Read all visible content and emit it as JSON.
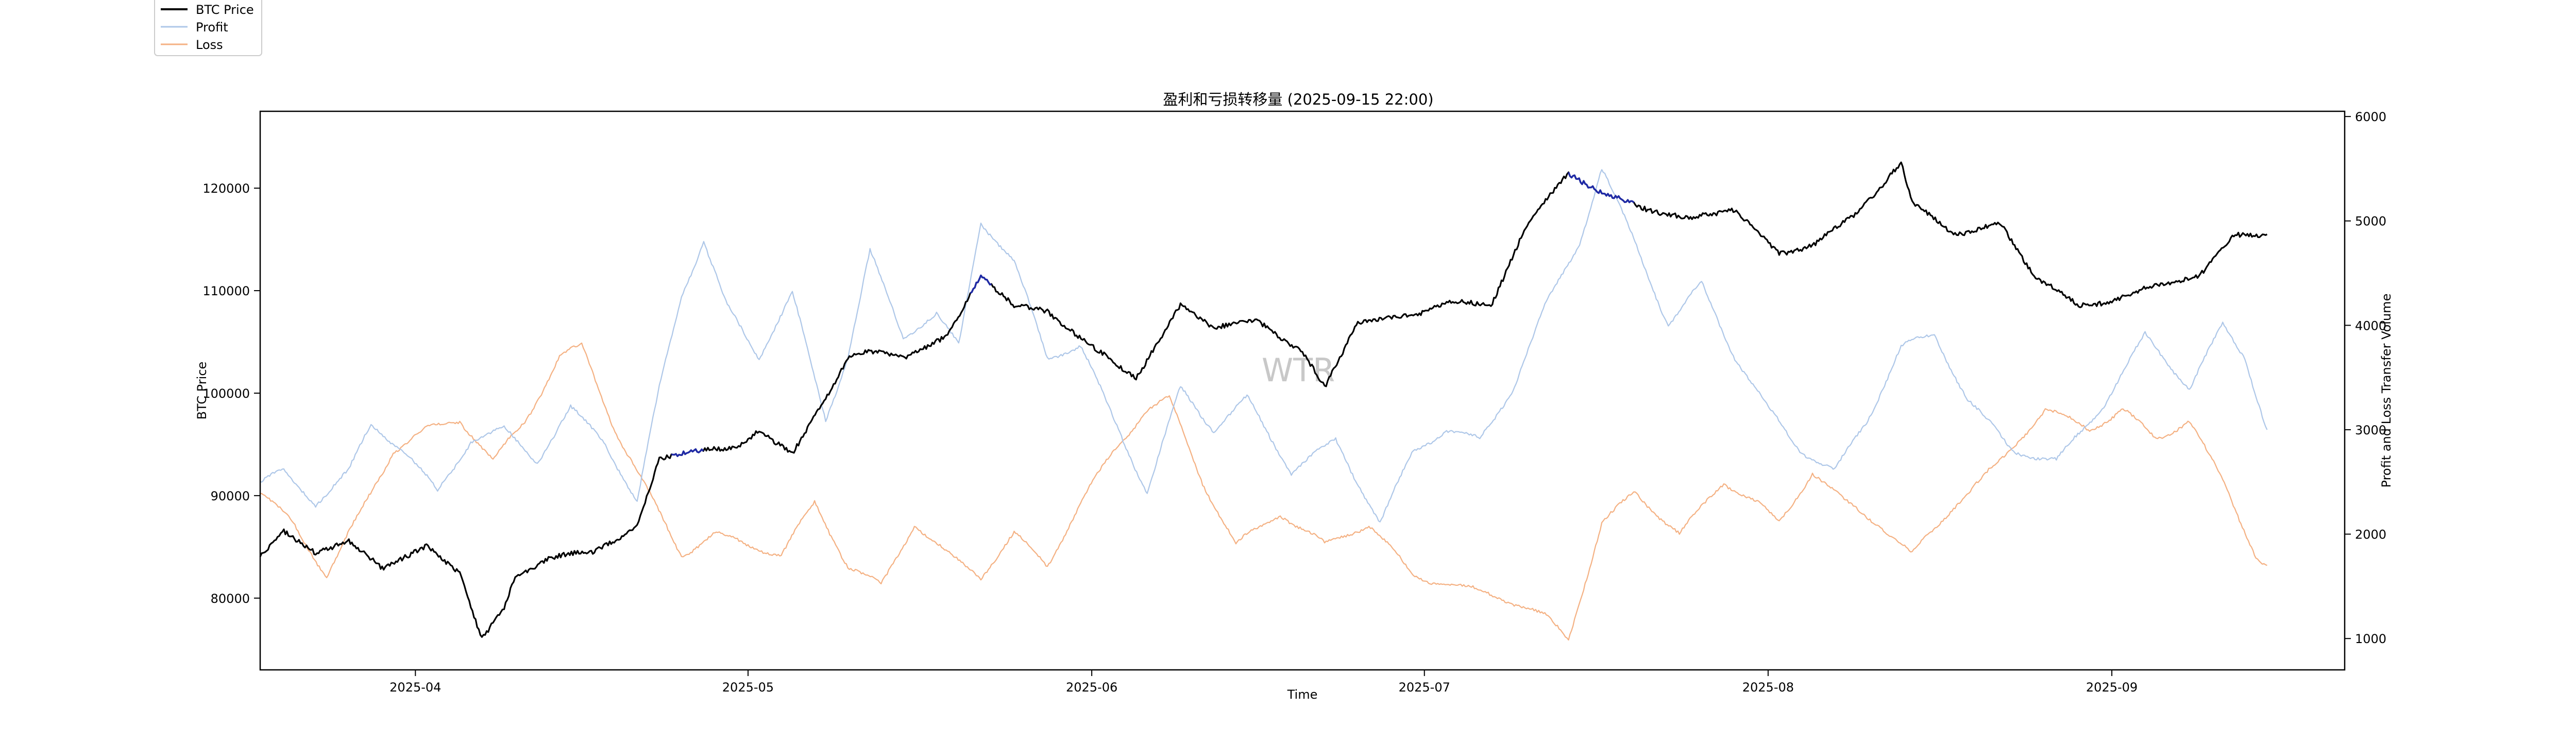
{
  "chart_data": {
    "type": "line",
    "title": "盈利和亏损转移量 (2025-09-15 22:00)",
    "xlabel": "Time",
    "ylabel_left": "BTC Price",
    "ylabel_right": "Profit and Loss Transfer Volume",
    "watermark": "WTR",
    "x_range": [
      "2025-03-18",
      "2025-09-22"
    ],
    "x_ticks": [
      {
        "date": "2025-04-01",
        "label": "2025-04"
      },
      {
        "date": "2025-05-01",
        "label": "2025-05"
      },
      {
        "date": "2025-06-01",
        "label": "2025-06"
      },
      {
        "date": "2025-07-01",
        "label": "2025-07"
      },
      {
        "date": "2025-08-01",
        "label": "2025-08"
      },
      {
        "date": "2025-09-01",
        "label": "2025-09"
      }
    ],
    "ylim_left": [
      73000,
      127500
    ],
    "yticks_left": [
      80000,
      90000,
      100000,
      110000,
      120000
    ],
    "ylim_right": [
      700,
      6050
    ],
    "yticks_right": [
      1000,
      2000,
      3000,
      4000,
      5000,
      6000
    ],
    "grid": false,
    "legend": {
      "placement": "top-left",
      "entries": [
        {
          "name": "BTC Price",
          "color": "#000000"
        },
        {
          "name": "Profit",
          "color": "#aec7e8"
        },
        {
          "name": "Loss",
          "color": "#f4b183"
        }
      ]
    },
    "highlight_color": "#1f2aa6",
    "series": [
      {
        "name": "BTC Price",
        "axis": "left",
        "color": "#000000",
        "points": [
          [
            "2025-03-18",
            84000
          ],
          [
            "2025-03-20",
            86500
          ],
          [
            "2025-03-23",
            84500
          ],
          [
            "2025-03-26",
            85500
          ],
          [
            "2025-03-29",
            83000
          ],
          [
            "2025-04-02",
            85000
          ],
          [
            "2025-04-05",
            82500
          ],
          [
            "2025-04-07",
            76000
          ],
          [
            "2025-04-09",
            79000
          ],
          [
            "2025-04-10",
            82000
          ],
          [
            "2025-04-13",
            84000
          ],
          [
            "2025-04-17",
            84500
          ],
          [
            "2025-04-21",
            87000
          ],
          [
            "2025-04-23",
            93500
          ],
          [
            "2025-04-26",
            94500
          ],
          [
            "2025-04-30",
            94500
          ],
          [
            "2025-05-02",
            96500
          ],
          [
            "2025-05-05",
            94000
          ],
          [
            "2025-05-08",
            99500
          ],
          [
            "2025-05-10",
            103500
          ],
          [
            "2025-05-12",
            104000
          ],
          [
            "2025-05-15",
            103500
          ],
          [
            "2025-05-19",
            105500
          ],
          [
            "2025-05-22",
            111500
          ],
          [
            "2025-05-25",
            108500
          ],
          [
            "2025-05-28",
            108000
          ],
          [
            "2025-06-01",
            104500
          ],
          [
            "2025-06-05",
            101500
          ],
          [
            "2025-06-09",
            108500
          ],
          [
            "2025-06-12",
            106500
          ],
          [
            "2025-06-16",
            107000
          ],
          [
            "2025-06-20",
            104000
          ],
          [
            "2025-06-22",
            100500
          ],
          [
            "2025-06-25",
            107000
          ],
          [
            "2025-06-30",
            107500
          ],
          [
            "2025-07-03",
            109000
          ],
          [
            "2025-07-07",
            108500
          ],
          [
            "2025-07-10",
            116000
          ],
          [
            "2025-07-14",
            121500
          ],
          [
            "2025-07-17",
            119500
          ],
          [
            "2025-07-21",
            118000
          ],
          [
            "2025-07-25",
            117000
          ],
          [
            "2025-07-29",
            118000
          ],
          [
            "2025-08-02",
            113500
          ],
          [
            "2025-08-05",
            114500
          ],
          [
            "2025-08-09",
            117500
          ],
          [
            "2025-08-13",
            122500
          ],
          [
            "2025-08-14",
            118500
          ],
          [
            "2025-08-18",
            115500
          ],
          [
            "2025-08-22",
            116500
          ],
          [
            "2025-08-25",
            111500
          ],
          [
            "2025-08-29",
            108500
          ],
          [
            "2025-09-01",
            109000
          ],
          [
            "2025-09-05",
            110500
          ],
          [
            "2025-09-09",
            111500
          ],
          [
            "2025-09-12",
            115500
          ],
          [
            "2025-09-15",
            115500
          ]
        ]
      },
      {
        "name": "Profit",
        "axis": "right",
        "color": "#aec7e8",
        "points": [
          [
            "2025-03-18",
            2500
          ],
          [
            "2025-03-20",
            2600
          ],
          [
            "2025-03-23",
            2300
          ],
          [
            "2025-03-26",
            2600
          ],
          [
            "2025-03-28",
            3050
          ],
          [
            "2025-03-31",
            2800
          ],
          [
            "2025-04-03",
            2400
          ],
          [
            "2025-04-06",
            2900
          ],
          [
            "2025-04-09",
            3000
          ],
          [
            "2025-04-12",
            2700
          ],
          [
            "2025-04-15",
            3200
          ],
          [
            "2025-04-18",
            2900
          ],
          [
            "2025-04-21",
            2300
          ],
          [
            "2025-04-23",
            3400
          ],
          [
            "2025-04-25",
            4300
          ],
          [
            "2025-04-27",
            4800
          ],
          [
            "2025-04-29",
            4200
          ],
          [
            "2025-05-02",
            3700
          ],
          [
            "2025-05-05",
            4300
          ],
          [
            "2025-05-08",
            3100
          ],
          [
            "2025-05-10",
            3700
          ],
          [
            "2025-05-12",
            4700
          ],
          [
            "2025-05-15",
            3900
          ],
          [
            "2025-05-18",
            4100
          ],
          [
            "2025-05-20",
            3800
          ],
          [
            "2025-05-22",
            5000
          ],
          [
            "2025-05-25",
            4600
          ],
          [
            "2025-05-28",
            3700
          ],
          [
            "2025-05-31",
            3800
          ],
          [
            "2025-06-03",
            3100
          ],
          [
            "2025-06-06",
            2400
          ],
          [
            "2025-06-09",
            3400
          ],
          [
            "2025-06-12",
            3000
          ],
          [
            "2025-06-15",
            3300
          ],
          [
            "2025-06-19",
            2600
          ],
          [
            "2025-06-23",
            2900
          ],
          [
            "2025-06-27",
            2100
          ],
          [
            "2025-06-30",
            2800
          ],
          [
            "2025-07-03",
            3000
          ],
          [
            "2025-07-06",
            2900
          ],
          [
            "2025-07-09",
            3400
          ],
          [
            "2025-07-12",
            4200
          ],
          [
            "2025-07-15",
            4800
          ],
          [
            "2025-07-17",
            5500
          ],
          [
            "2025-07-20",
            4800
          ],
          [
            "2025-07-23",
            4000
          ],
          [
            "2025-07-26",
            4400
          ],
          [
            "2025-07-29",
            3700
          ],
          [
            "2025-08-01",
            3200
          ],
          [
            "2025-08-04",
            2800
          ],
          [
            "2025-08-07",
            2600
          ],
          [
            "2025-08-10",
            3100
          ],
          [
            "2025-08-13",
            3800
          ],
          [
            "2025-08-16",
            3900
          ],
          [
            "2025-08-19",
            3300
          ],
          [
            "2025-08-23",
            2800
          ],
          [
            "2025-08-27",
            2700
          ],
          [
            "2025-08-31",
            3200
          ],
          [
            "2025-09-04",
            3900
          ],
          [
            "2025-09-08",
            3400
          ],
          [
            "2025-09-11",
            4000
          ],
          [
            "2025-09-13",
            3700
          ],
          [
            "2025-09-15",
            3000
          ]
        ]
      },
      {
        "name": "Loss",
        "axis": "right",
        "color": "#f4b183",
        "points": [
          [
            "2025-03-18",
            2400
          ],
          [
            "2025-03-21",
            2100
          ],
          [
            "2025-03-24",
            1600
          ],
          [
            "2025-03-27",
            2200
          ],
          [
            "2025-03-30",
            2800
          ],
          [
            "2025-04-02",
            3000
          ],
          [
            "2025-04-05",
            3100
          ],
          [
            "2025-04-08",
            2700
          ],
          [
            "2025-04-11",
            3100
          ],
          [
            "2025-04-14",
            3700
          ],
          [
            "2025-04-16",
            3800
          ],
          [
            "2025-04-19",
            3000
          ],
          [
            "2025-04-22",
            2400
          ],
          [
            "2025-04-25",
            1800
          ],
          [
            "2025-04-28",
            2000
          ],
          [
            "2025-05-01",
            1900
          ],
          [
            "2025-05-04",
            1800
          ],
          [
            "2025-05-07",
            2300
          ],
          [
            "2025-05-10",
            1700
          ],
          [
            "2025-05-13",
            1500
          ],
          [
            "2025-05-16",
            2100
          ],
          [
            "2025-05-19",
            1800
          ],
          [
            "2025-05-22",
            1600
          ],
          [
            "2025-05-25",
            2000
          ],
          [
            "2025-05-28",
            1700
          ],
          [
            "2025-05-31",
            2300
          ],
          [
            "2025-06-03",
            2800
          ],
          [
            "2025-06-06",
            3200
          ],
          [
            "2025-06-08",
            3300
          ],
          [
            "2025-06-11",
            2500
          ],
          [
            "2025-06-14",
            1900
          ],
          [
            "2025-06-18",
            2200
          ],
          [
            "2025-06-22",
            1900
          ],
          [
            "2025-06-26",
            2100
          ],
          [
            "2025-06-30",
            1600
          ],
          [
            "2025-07-04",
            1500
          ],
          [
            "2025-07-08",
            1400
          ],
          [
            "2025-07-12",
            1200
          ],
          [
            "2025-07-14",
            1000
          ],
          [
            "2025-07-17",
            2100
          ],
          [
            "2025-07-20",
            2400
          ],
          [
            "2025-07-24",
            2000
          ],
          [
            "2025-07-28",
            2500
          ],
          [
            "2025-07-31",
            2300
          ],
          [
            "2025-08-02",
            2100
          ],
          [
            "2025-08-05",
            2600
          ],
          [
            "2025-08-08",
            2300
          ],
          [
            "2025-08-11",
            2100
          ],
          [
            "2025-08-14",
            1800
          ],
          [
            "2025-08-18",
            2300
          ],
          [
            "2025-08-22",
            2700
          ],
          [
            "2025-08-26",
            3200
          ],
          [
            "2025-08-30",
            3000
          ],
          [
            "2025-09-02",
            3200
          ],
          [
            "2025-09-05",
            2900
          ],
          [
            "2025-09-08",
            3100
          ],
          [
            "2025-09-11",
            2500
          ],
          [
            "2025-09-14",
            1800
          ],
          [
            "2025-09-15",
            1700
          ]
        ]
      }
    ],
    "highlight_segments": [
      {
        "start": "2025-04-24",
        "end": "2025-04-27"
      },
      {
        "start": "2025-05-21",
        "end": "2025-05-23"
      },
      {
        "start": "2025-07-14",
        "end": "2025-07-20"
      }
    ]
  }
}
